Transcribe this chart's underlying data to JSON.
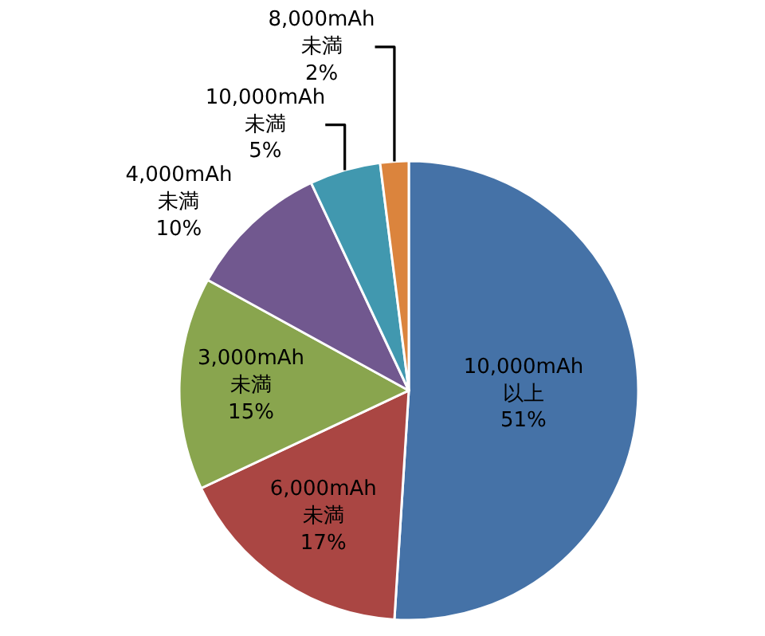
{
  "chart_data": {
    "type": "pie",
    "categories": [
      "10,000mAh 以上",
      "6,000mAh 未満",
      "3,000mAh 未満",
      "4,000mAh 未満",
      "10,000mAh 未満",
      "8,000mAh 未満"
    ],
    "values": [
      51,
      17,
      15,
      10,
      5,
      2
    ],
    "value_labels": [
      "51%",
      "17%",
      "15%",
      "10%",
      "5%",
      "2%"
    ],
    "colors": [
      "#4572a7",
      "#aa4643",
      "#89a54e",
      "#71588f",
      "#4198af",
      "#db843d"
    ],
    "legend": false
  }
}
